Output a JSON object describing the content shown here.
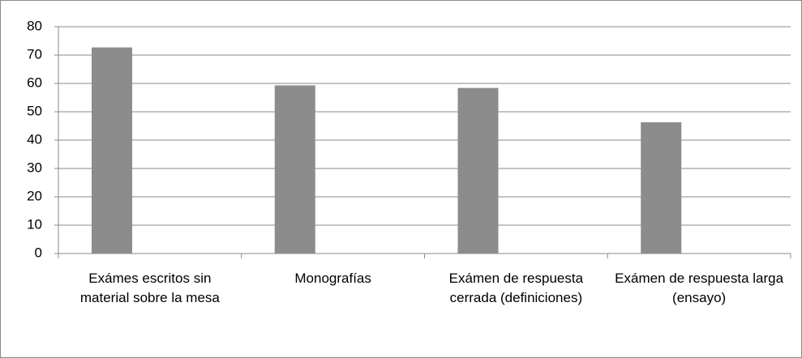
{
  "chart_data": {
    "type": "bar",
    "categories": [
      "Exámes escritos sin material sobre la mesa",
      "Monografías",
      "Exámen de respuesta cerrada (definiciones)",
      "Exámen de respuesta larga (ensayo)"
    ],
    "values": [
      72.7,
      59.3,
      58.4,
      46.3
    ],
    "color": "#8c8c8c",
    "ylim": [
      0,
      80
    ],
    "yticks": [
      0,
      10,
      20,
      30,
      40,
      50,
      60,
      70,
      80
    ],
    "grid": true
  }
}
